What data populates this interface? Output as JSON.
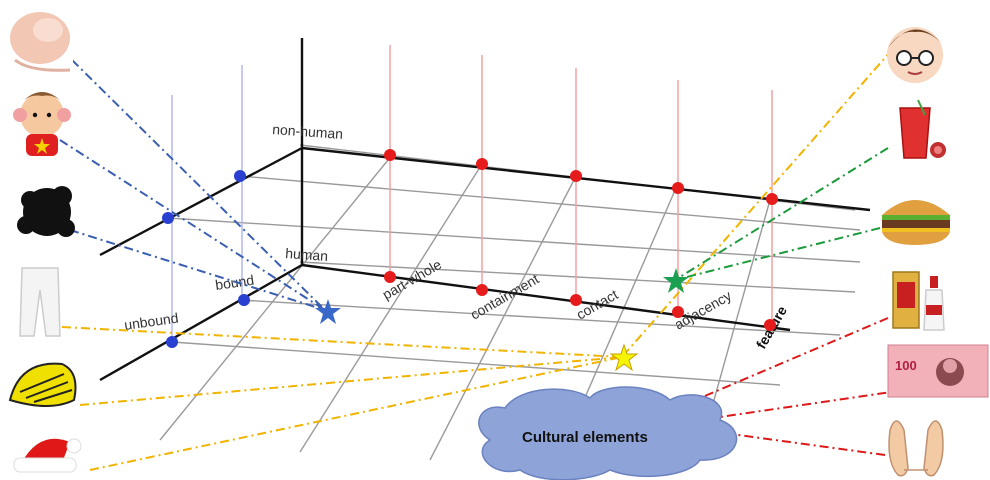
{
  "axes": {
    "vertical": {
      "top_label": "non-human",
      "middle_label": "human",
      "upper_left_label": "bound",
      "lower_left_label": "unbound"
    },
    "horizontal": {
      "categories": [
        "part-whole",
        "containment",
        "contact",
        "adjacency",
        "feature"
      ]
    }
  },
  "cloud": {
    "label": "Cultural elements"
  },
  "left_icons": [
    {
      "name": "finger-icon",
      "line_color": "blue"
    },
    {
      "name": "cartoon-boy-icon",
      "line_color": "blue"
    },
    {
      "name": "black-hair-icon",
      "line_color": "blue"
    },
    {
      "name": "white-pants-icon",
      "line_color": "yellow"
    },
    {
      "name": "bike-helmet-icon",
      "line_color": "yellow"
    },
    {
      "name": "santa-hat-icon",
      "line_color": "yellow"
    }
  ],
  "right_icons": [
    {
      "name": "glasses-boy-icon",
      "line_color": "yellow"
    },
    {
      "name": "juice-glass-icon",
      "line_color": "green"
    },
    {
      "name": "hamburger-icon",
      "line_color": "green"
    },
    {
      "name": "liquor-bottle-icon",
      "line_color": "red"
    },
    {
      "name": "banknote-icon",
      "line_color": "red",
      "text": "100"
    },
    {
      "name": "open-hands-icon",
      "line_color": "red"
    }
  ],
  "colors": {
    "blue_line": "#3a5fb0",
    "yellow_line": "#f0b400",
    "green_line": "#1a9a3a",
    "red_line": "#dd1a1a",
    "red_dot": "#e61c1c",
    "blue_dot": "#2a40d0",
    "cloud": "#8ea3d8",
    "blue_star": "#3a68c8",
    "green_star": "#1aa050",
    "yellow_star": "#f5f500"
  }
}
